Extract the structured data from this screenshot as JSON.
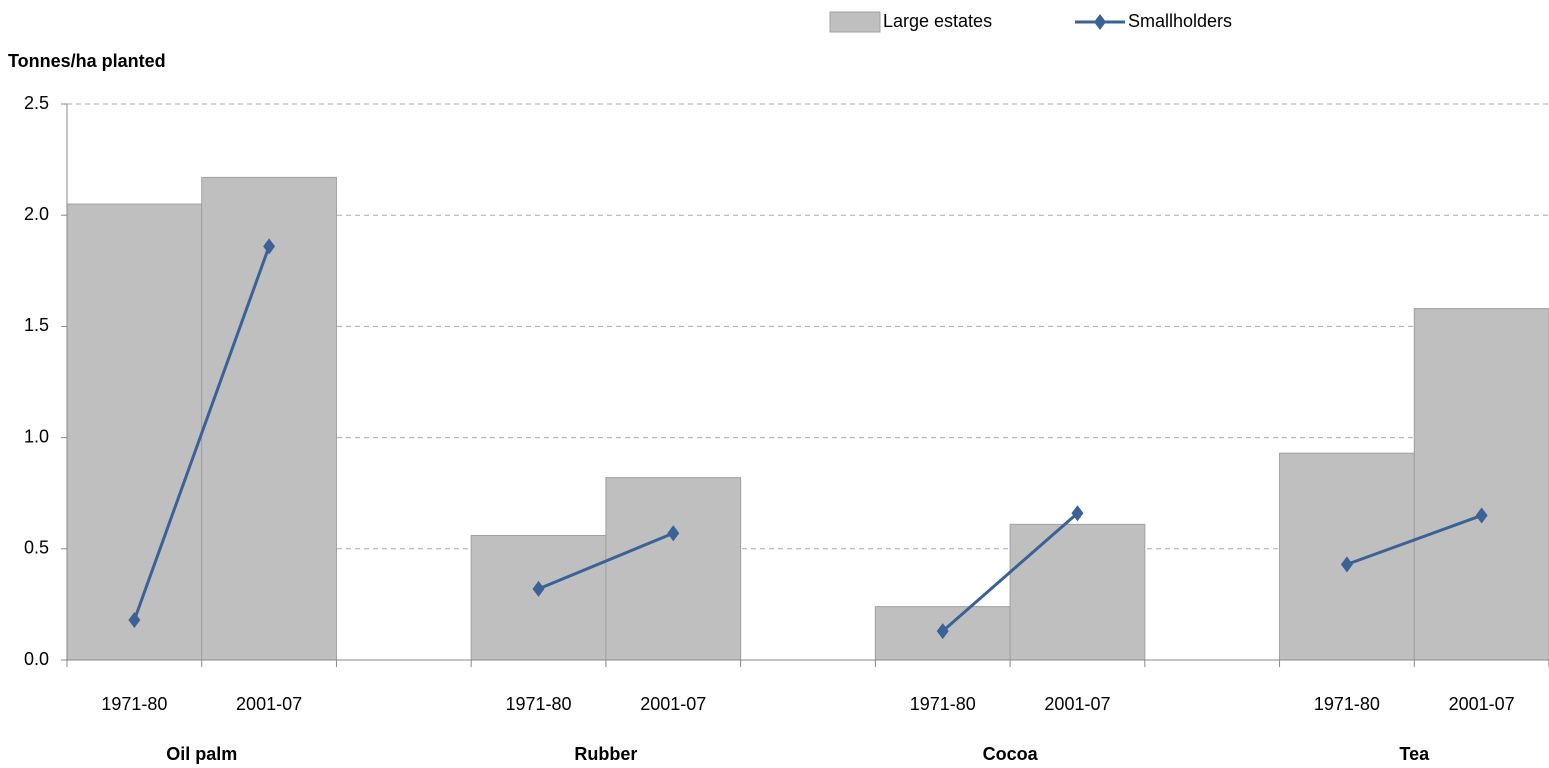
{
  "chart_data": {
    "type": "bar",
    "y_label": "Tonnes/ha planted",
    "categories": [
      "1971-80",
      "2001-07",
      null,
      "1971-80",
      "2001-07",
      null,
      "1971-80",
      "2001-07",
      null,
      "1971-80",
      "2001-07"
    ],
    "group_labels": [
      "Oil palm",
      "Rubber",
      "Cocoa",
      "Tea"
    ],
    "series": [
      {
        "name": "Large estates",
        "type": "bar",
        "color": "#bfbfbf",
        "values": [
          2.05,
          2.17,
          null,
          0.56,
          0.82,
          null,
          0.24,
          0.61,
          null,
          0.93,
          1.58
        ]
      },
      {
        "name": "Smallholders",
        "type": "line",
        "color": "#3a6296",
        "values": [
          0.18,
          1.86,
          null,
          0.32,
          0.57,
          null,
          0.13,
          0.66,
          null,
          0.43,
          0.65
        ]
      }
    ],
    "ylim": [
      0,
      2.5
    ],
    "yticks": [
      {
        "value": 0,
        "label": "0.0"
      },
      0.5,
      {
        "value": 1,
        "label": "1.0"
      },
      1.5,
      {
        "value": 2,
        "label": "2.0"
      },
      2.5
    ],
    "grid": true,
    "legend": "top"
  }
}
